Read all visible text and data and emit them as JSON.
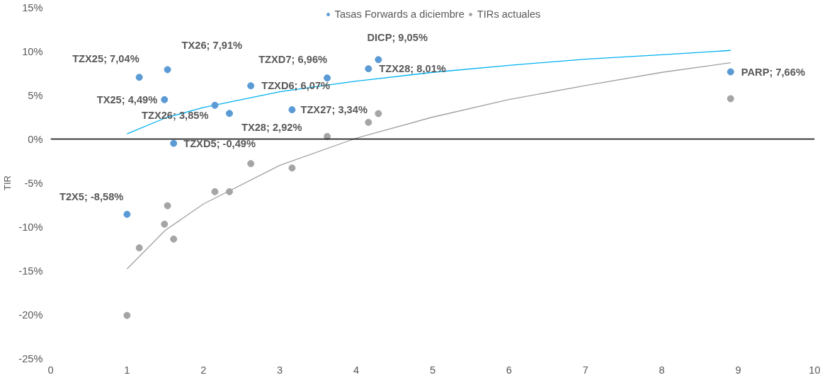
{
  "chart_data": {
    "type": "scatter",
    "ylabel": "TIR",
    "xlim": [
      0,
      10
    ],
    "ylim": [
      -25,
      15
    ],
    "xticks": [
      0,
      1,
      2,
      3,
      4,
      5,
      6,
      7,
      8,
      9,
      10
    ],
    "yticks": [
      {
        "value": -25,
        "label": "-25%"
      },
      {
        "value": -20,
        "label": "-20%"
      },
      {
        "value": -15,
        "label": "-15%"
      },
      {
        "value": -10,
        "label": "-10%"
      },
      {
        "value": -5,
        "label": "-5%"
      },
      {
        "value": 0,
        "label": "0%"
      },
      {
        "value": 5,
        "label": "5%"
      },
      {
        "value": 10,
        "label": "10%"
      },
      {
        "value": 15,
        "label": "15%"
      }
    ],
    "grid": false,
    "legend": "top",
    "marker": "circle",
    "ref_lines": [
      {
        "axis": "y",
        "value": 0,
        "color": "#000000"
      }
    ],
    "series": [
      {
        "name": "Tasas Forwards a diciembre",
        "color": "#5b9bd5",
        "x": [
          1.0,
          1.16,
          1.49,
          1.53,
          1.61,
          2.15,
          2.34,
          2.62,
          3.16,
          3.62,
          4.16,
          4.29,
          8.9
        ],
        "values": [
          -8.58,
          7.04,
          4.49,
          7.91,
          -0.49,
          3.85,
          2.92,
          6.07,
          3.34,
          6.96,
          8.01,
          9.05,
          7.66
        ],
        "value_labels": [
          "T2X5; -8,58%",
          "TZX25; 7,04%",
          "TX25; 4,49%",
          "TX26; 7,91%",
          "TZXD5; -0,49%",
          "TZX26; 3,85%",
          "TX28; 2,92%",
          "TZXD6; 6,07%",
          "TZX27; 3,34%",
          "TZXD7; 6,96%",
          "TZX28; 8,01%",
          "DICP; 9,05%",
          "PARP; 7,66%"
        ]
      },
      {
        "name": "TIRs actuales",
        "color": "#a5a5a5",
        "x": [
          1.0,
          1.16,
          1.49,
          1.53,
          1.61,
          2.15,
          2.34,
          2.62,
          3.16,
          3.62,
          4.16,
          4.29,
          8.9
        ],
        "values": [
          -20.1,
          -12.4,
          -9.7,
          -7.6,
          -11.4,
          -6.0,
          -6.0,
          -2.8,
          -3.3,
          0.3,
          1.9,
          2.9,
          4.6
        ]
      },
      {
        "type": "line",
        "marker": "none",
        "color": "#00b0f0",
        "x": [
          1,
          1.5,
          2,
          3,
          4,
          5,
          6,
          7,
          8,
          8.9
        ],
        "values": [
          0.6,
          2.4,
          3.6,
          5.4,
          6.6,
          7.6,
          8.4,
          9.1,
          9.6,
          10.1
        ]
      },
      {
        "type": "line",
        "marker": "none",
        "color": "#a0a0a0",
        "x": [
          1,
          1.5,
          2,
          3,
          4,
          5,
          6,
          7,
          8,
          8.9
        ],
        "values": [
          -14.8,
          -10.4,
          -7.4,
          -3.0,
          0.1,
          2.5,
          4.5,
          6.1,
          7.6,
          8.7
        ]
      }
    ]
  }
}
